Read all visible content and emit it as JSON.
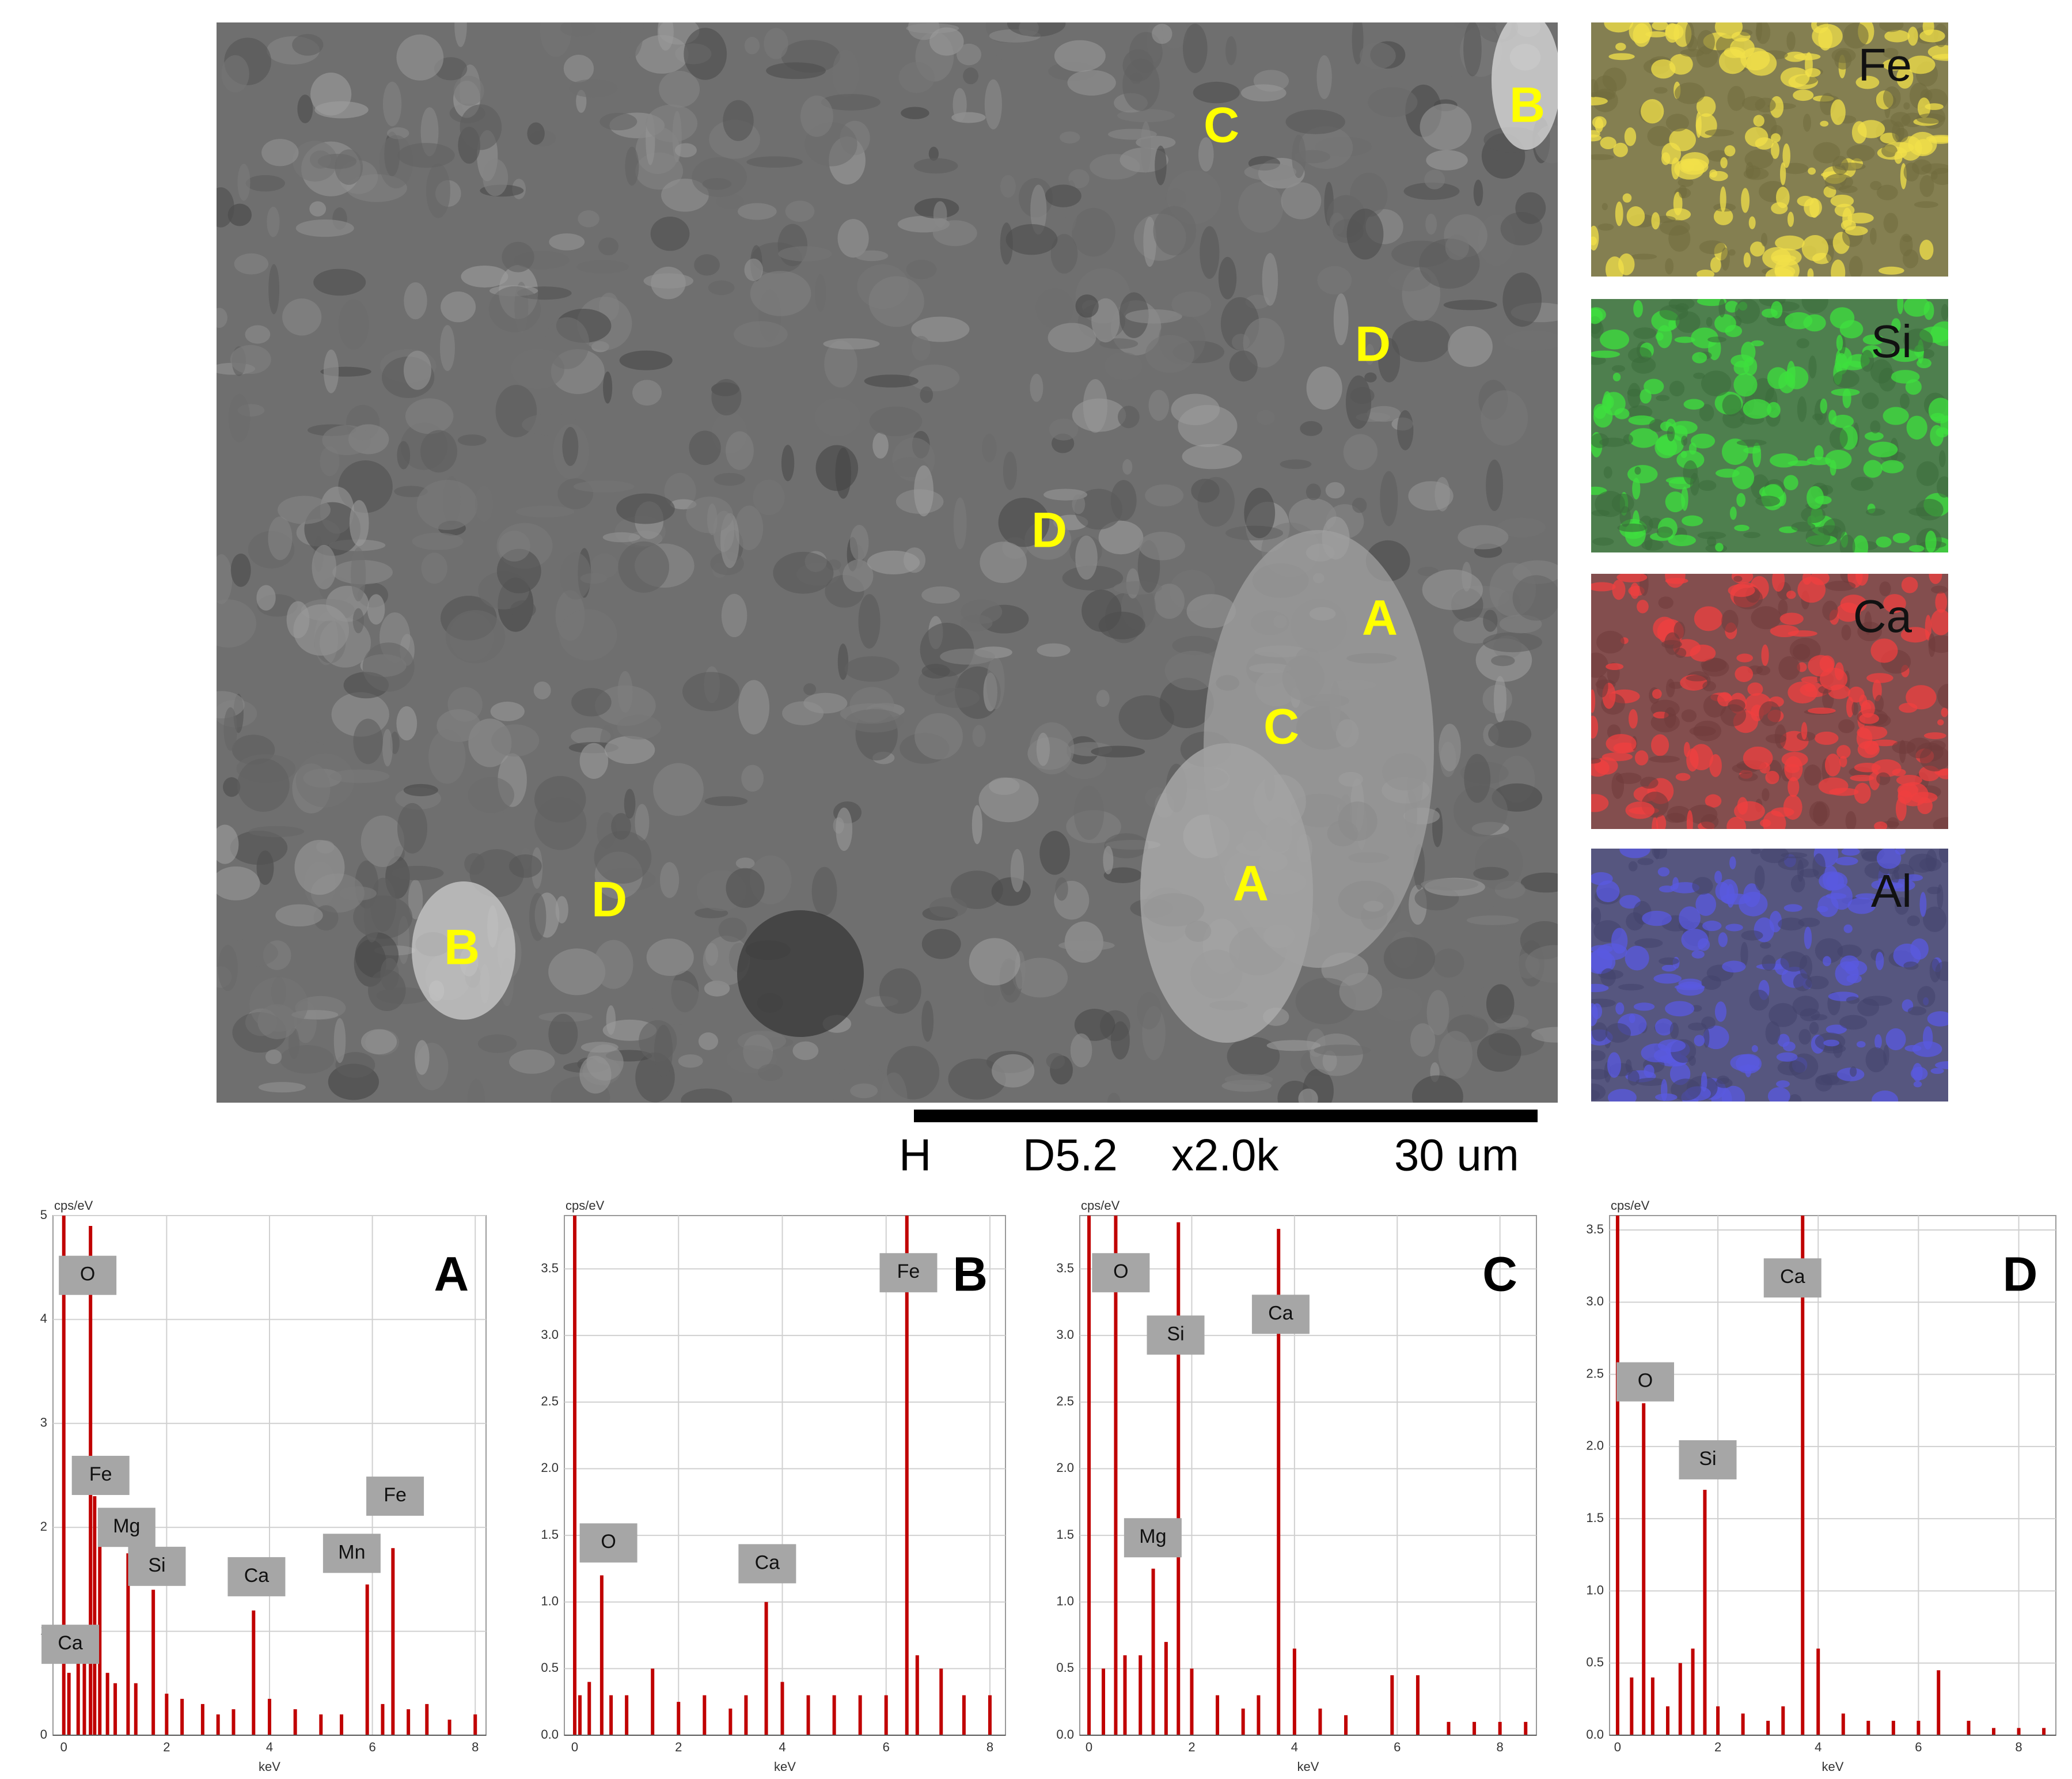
{
  "sem_image": {
    "labels": [
      "C",
      "B",
      "D",
      "D",
      "A",
      "C",
      "A",
      "B",
      "D"
    ],
    "scale_bar": {
      "mode": "H",
      "working_distance": "D5.2",
      "magnification": "x2.0k",
      "length": "30 um"
    }
  },
  "element_maps": [
    {
      "element": "Fe",
      "color": "#f2e04a"
    },
    {
      "element": "Si",
      "color": "#3ee03e"
    },
    {
      "element": "Ca",
      "color": "#f04040"
    },
    {
      "element": "Al",
      "color": "#5a5ae0"
    }
  ],
  "chart_data": [
    {
      "type": "spectrum",
      "panel": "A",
      "y_unit_label": "cps/eV",
      "x_label": "keV",
      "color": "#c00000",
      "x": [
        0,
        0.1,
        0.28,
        0.4,
        0.52,
        0.6,
        0.7,
        0.85,
        1.0,
        1.25,
        1.4,
        1.74,
        2.0,
        2.3,
        2.7,
        3.0,
        3.3,
        3.69,
        4.0,
        4.5,
        5.0,
        5.4,
        5.9,
        6.2,
        6.4,
        6.7,
        7.06,
        7.5,
        8.0
      ],
      "values": [
        5,
        0.6,
        1.0,
        0.8,
        4.9,
        2.3,
        1.9,
        0.6,
        0.5,
        1.75,
        0.5,
        1.4,
        0.4,
        0.35,
        0.3,
        0.2,
        0.25,
        1.2,
        0.35,
        0.25,
        0.2,
        0.2,
        1.45,
        0.3,
        1.8,
        0.25,
        0.3,
        0.15,
        0.2
      ],
      "xlim": [
        -0.21,
        8.21
      ],
      "ylim": [
        0,
        5
      ],
      "xticks": [
        0,
        2,
        4,
        6,
        8
      ],
      "yticks": [
        0,
        1,
        2,
        3,
        4,
        5
      ],
      "grid": true,
      "annotations": [
        "O",
        "Fe",
        "Mg",
        "Si",
        "Ca",
        "Mn",
        "Fe",
        "Ca"
      ]
    },
    {
      "type": "spectrum",
      "panel": "B",
      "y_unit_label": "cps/eV",
      "x_label": "keV",
      "color": "#c00000",
      "x": [
        0,
        0.1,
        0.28,
        0.52,
        0.7,
        1.0,
        1.5,
        2.0,
        2.5,
        3.0,
        3.3,
        3.69,
        4.0,
        4.5,
        5.0,
        5.5,
        6.0,
        6.4,
        6.6,
        7.06,
        7.5,
        8.0
      ],
      "values": [
        3.9,
        0.3,
        0.4,
        1.2,
        0.3,
        0.3,
        0.5,
        0.25,
        0.3,
        0.2,
        0.3,
        1.0,
        0.4,
        0.3,
        0.3,
        0.3,
        0.3,
        3.9,
        0.6,
        0.5,
        0.3,
        0.3
      ],
      "xlim": [
        -0.2,
        8.3
      ],
      "ylim": [
        0,
        3.9
      ],
      "xticks": [
        0,
        2,
        4,
        6,
        8
      ],
      "yticks": [
        {
          "value": 0,
          "label": "0.0"
        },
        0.5,
        {
          "value": 1,
          "label": "1.0"
        },
        1.5,
        {
          "value": 2,
          "label": "2.0"
        },
        2.5,
        {
          "value": 3,
          "label": "3.0"
        },
        3.5
      ],
      "grid": true,
      "annotations": [
        "O",
        "Ca",
        "Fe"
      ]
    },
    {
      "type": "spectrum",
      "panel": "C",
      "y_unit_label": "cps/eV",
      "x_label": "keV",
      "color": "#c00000",
      "x": [
        0,
        0.28,
        0.52,
        0.7,
        1.0,
        1.25,
        1.5,
        1.74,
        2.0,
        2.5,
        3.0,
        3.3,
        3.69,
        4.0,
        4.5,
        5.0,
        5.9,
        6.4,
        7.0,
        7.5,
        8.0,
        8.5
      ],
      "values": [
        3.9,
        0.5,
        3.9,
        0.6,
        0.6,
        1.25,
        0.7,
        3.85,
        0.5,
        0.3,
        0.2,
        0.3,
        3.8,
        0.65,
        0.2,
        0.15,
        0.45,
        0.45,
        0.1,
        0.1,
        0.1,
        0.1
      ],
      "xlim": [
        -0.18,
        8.71
      ],
      "ylim": [
        0,
        3.9
      ],
      "xticks": [
        0,
        2,
        4,
        6,
        8
      ],
      "yticks": [
        {
          "value": 0,
          "label": "0.0"
        },
        0.5,
        {
          "value": 1,
          "label": "1.0"
        },
        1.5,
        {
          "value": 2,
          "label": "2.0"
        },
        2.5,
        {
          "value": 3,
          "label": "3.0"
        },
        3.5
      ],
      "grid": true,
      "annotations": [
        "O",
        "Si",
        "Ca",
        "Mg"
      ]
    },
    {
      "type": "spectrum",
      "panel": "D",
      "y_unit_label": "cps/eV",
      "x_label": "keV",
      "color": "#c00000",
      "x": [
        0,
        0.28,
        0.52,
        0.7,
        1.0,
        1.25,
        1.5,
        1.74,
        2.0,
        2.5,
        3.0,
        3.3,
        3.69,
        4.0,
        4.5,
        5.0,
        5.5,
        6.0,
        6.4,
        7.0,
        7.5,
        8.0,
        8.5
      ],
      "values": [
        3.6,
        0.4,
        2.3,
        0.4,
        0.2,
        0.5,
        0.6,
        1.7,
        0.2,
        0.15,
        0.1,
        0.2,
        3.6,
        0.6,
        0.15,
        0.1,
        0.1,
        0.1,
        0.45,
        0.1,
        0.05,
        0.05,
        0.05
      ],
      "xlim": [
        -0.16,
        8.74
      ],
      "ylim": [
        0,
        3.6
      ],
      "xticks": [
        0,
        2,
        4,
        6,
        8
      ],
      "yticks": [
        {
          "value": 0,
          "label": "0.0"
        },
        0.5,
        {
          "value": 1,
          "label": "1.0"
        },
        1.5,
        {
          "value": 2,
          "label": "2.0"
        },
        2.5,
        {
          "value": 3,
          "label": "3.0"
        },
        3.5
      ],
      "grid": true,
      "annotations": [
        "O",
        "Si",
        "Ca"
      ]
    }
  ]
}
